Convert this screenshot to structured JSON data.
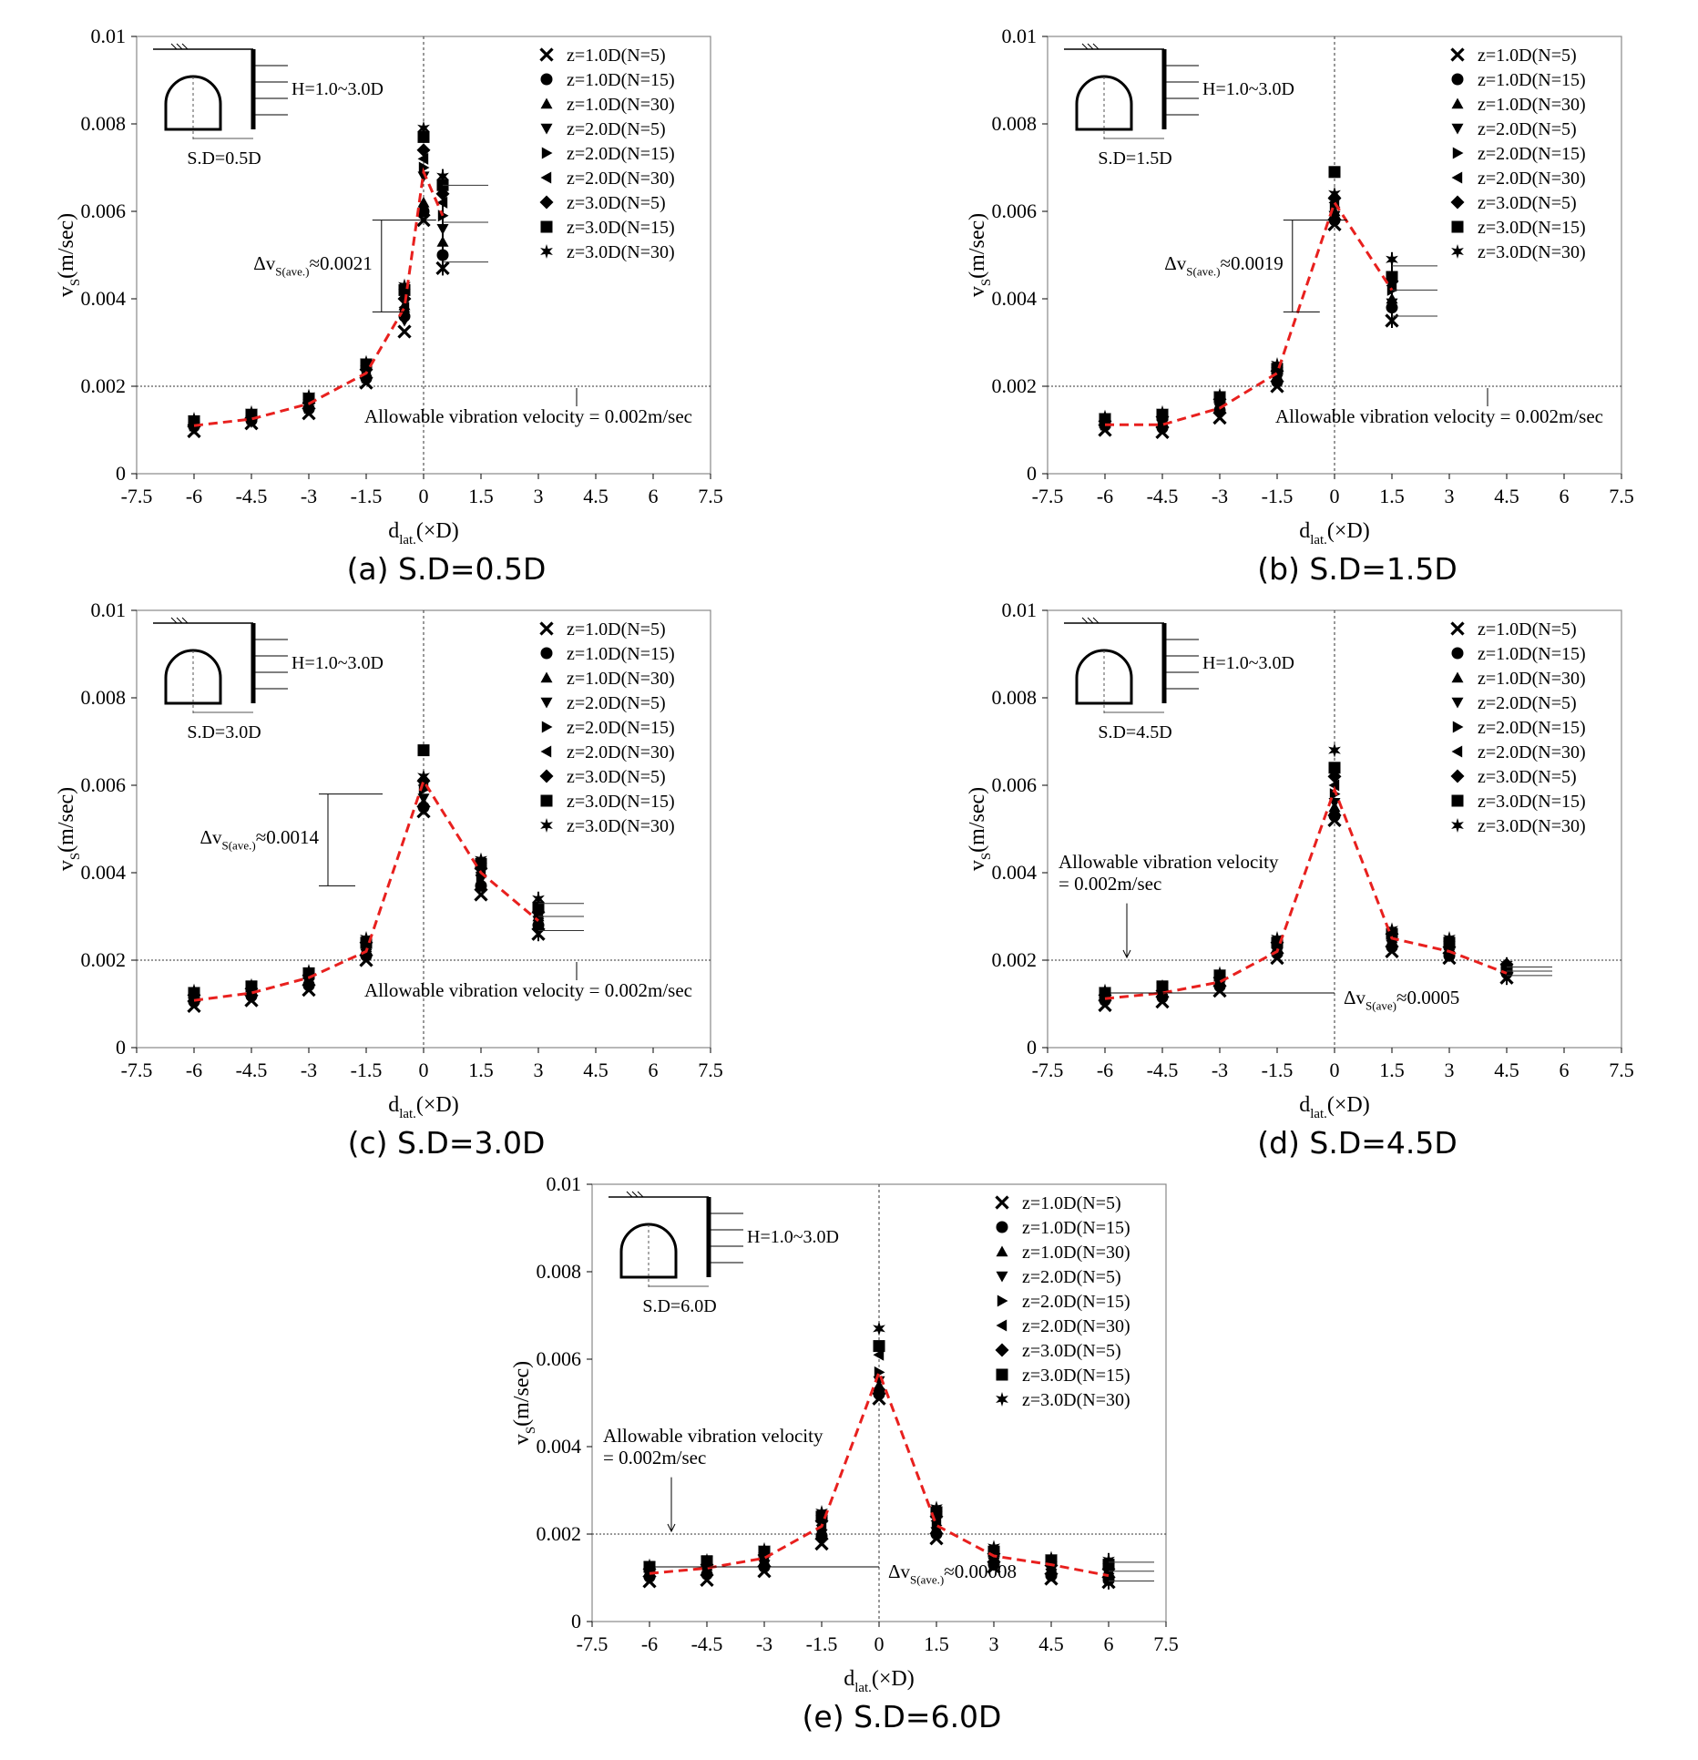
{
  "legend_markers": {
    "z=1.0D(N=5)": "x",
    "z=1.0D(N=15)": "circle",
    "z=1.0D(N=30)": "triangle-up",
    "z=2.0D(N=5)": "triangle-down",
    "z=2.0D(N=15)": "triangle-right",
    "z=2.0D(N=30)": "triangle-left",
    "z=3.0D(N=5)": "diamond",
    "z=3.0D(N=15)": "square",
    "z=3.0D(N=30)": "star"
  },
  "colors": {
    "mean_line": "#e8201e",
    "markers": "#000000",
    "reference_line": "#333333"
  },
  "chart_data": [
    {
      "panel": "a",
      "caption": "(a) S.D=0.5D",
      "type": "scatter",
      "xlabel": "d_lat.(×D)",
      "ylabel": "v_S(m/sec)",
      "xlim": [
        -7.5,
        7.5
      ],
      "ylim": [
        0,
        0.01
      ],
      "xticks": [
        "-7.5",
        "-6",
        "-4.5",
        "-3",
        "-1.5",
        "0",
        "1.5",
        "3",
        "4.5",
        "6",
        "7.5"
      ],
      "yticks": [
        "0",
        "0.002",
        "0.004",
        "0.006",
        "0.008",
        "0.01"
      ],
      "x": [
        -6,
        -4.5,
        -3,
        -1.5,
        -0.5,
        0,
        0.5
      ],
      "series": [
        {
          "name": "z=1.0D(N=5)",
          "values": [
            0.00097,
            0.00115,
            0.00138,
            0.00208,
            0.00325,
            0.0058,
            0.0047
          ]
        },
        {
          "name": "z=1.0D(N=15)",
          "values": [
            0.00108,
            0.00122,
            0.00148,
            0.00218,
            0.0036,
            0.006,
            0.005
          ]
        },
        {
          "name": "z=1.0D(N=30)",
          "values": [
            0.00118,
            0.0013,
            0.00158,
            0.00232,
            0.00385,
            0.0062,
            0.0053
          ]
        },
        {
          "name": "z=2.0D(N=5)",
          "values": [
            0.00103,
            0.00118,
            0.00145,
            0.00215,
            0.0035,
            0.0068,
            0.0056
          ]
        },
        {
          "name": "z=2.0D(N=15)",
          "values": [
            0.0011,
            0.00125,
            0.0015,
            0.0022,
            0.0037,
            0.007,
            0.0059
          ]
        },
        {
          "name": "z=2.0D(N=30)",
          "values": [
            0.00115,
            0.00128,
            0.00155,
            0.00225,
            0.0038,
            0.0072,
            0.0062
          ]
        },
        {
          "name": "z=3.0D(N=5)",
          "values": [
            0.00112,
            0.00128,
            0.00162,
            0.00238,
            0.004,
            0.0074,
            0.0064
          ]
        },
        {
          "name": "z=3.0D(N=15)",
          "values": [
            0.0012,
            0.00135,
            0.00172,
            0.0025,
            0.0042,
            0.0077,
            0.0066
          ]
        },
        {
          "name": "z=3.0D(N=30)",
          "values": [
            0.00125,
            0.0014,
            0.00178,
            0.00255,
            0.0043,
            0.0079,
            0.0068
          ]
        }
      ],
      "mean_curve": {
        "x": [
          -6,
          -4.5,
          -3,
          -1.5,
          -0.5,
          0,
          0.5
        ],
        "y": [
          0.0011,
          0.00125,
          0.0016,
          0.0023,
          0.0038,
          0.0069,
          0.0059
        ]
      },
      "allowable_line_y": 0.002,
      "allowable_label": "Allowable vibration velocity = 0.002m/sec",
      "delta_label": "Δv_S(ave.)≈0.0021",
      "inset": {
        "h_label": "H=1.0~3.0D",
        "sd_label": "S.D=0.5D"
      }
    },
    {
      "panel": "b",
      "caption": "(b) S.D=1.5D",
      "type": "scatter",
      "xlabel": "d_lat.(×D)",
      "ylabel": "v_S(m/sec)",
      "xlim": [
        -7.5,
        7.5
      ],
      "ylim": [
        0,
        0.01
      ],
      "xticks": [
        "-7.5",
        "-6",
        "-4.5",
        "-3",
        "-1.5",
        "0",
        "1.5",
        "3",
        "4.5",
        "6",
        "7.5"
      ],
      "yticks": [
        "0",
        "0.002",
        "0.004",
        "0.006",
        "0.008",
        "0.01"
      ],
      "x": [
        -6,
        -4.5,
        -3,
        -1.5,
        0,
        1.5
      ],
      "series": [
        {
          "name": "z=1.0D(N=5)",
          "values": [
            0.001,
            0.00095,
            0.00128,
            0.002,
            0.0057,
            0.0035
          ]
        },
        {
          "name": "z=1.0D(N=15)",
          "values": [
            0.0011,
            0.00105,
            0.00145,
            0.0021,
            0.0058,
            0.0038
          ]
        },
        {
          "name": "z=1.0D(N=30)",
          "values": [
            0.00115,
            0.0012,
            0.00155,
            0.0022,
            0.006,
            0.004
          ]
        },
        {
          "name": "z=2.0D(N=5)",
          "values": [
            0.00108,
            0.00112,
            0.0015,
            0.00215,
            0.0059,
            0.0039
          ]
        },
        {
          "name": "z=2.0D(N=15)",
          "values": [
            0.00112,
            0.00118,
            0.0016,
            0.00225,
            0.0061,
            0.0042
          ]
        },
        {
          "name": "z=2.0D(N=30)",
          "values": [
            0.00118,
            0.00125,
            0.00165,
            0.0023,
            0.0062,
            0.0043
          ]
        },
        {
          "name": "z=3.0D(N=5)",
          "values": [
            0.0012,
            0.0013,
            0.0017,
            0.00235,
            0.0063,
            0.0044
          ]
        },
        {
          "name": "z=3.0D(N=15)",
          "values": [
            0.00125,
            0.00135,
            0.00175,
            0.0024,
            0.0069,
            0.0045
          ]
        },
        {
          "name": "z=3.0D(N=30)",
          "values": [
            0.0013,
            0.0014,
            0.0018,
            0.0025,
            0.0064,
            0.0049
          ]
        }
      ],
      "mean_curve": {
        "x": [
          -6,
          -4.5,
          -3,
          -1.5,
          0,
          1.5
        ],
        "y": [
          0.00112,
          0.00112,
          0.0015,
          0.0023,
          0.0062,
          0.0042
        ]
      },
      "allowable_line_y": 0.002,
      "allowable_label": "Allowable vibration velocity = 0.002m/sec",
      "delta_label": "Δv_S(ave.)≈0.0019",
      "inset": {
        "h_label": "H=1.0~3.0D",
        "sd_label": "S.D=1.5D"
      }
    },
    {
      "panel": "c",
      "caption": "(c) S.D=3.0D",
      "type": "scatter",
      "xlabel": "d_lat.(×D)",
      "ylabel": "v_S(m/sec)",
      "xlim": [
        -7.5,
        7.5
      ],
      "ylim": [
        0,
        0.01
      ],
      "xticks": [
        "-7.5",
        "-6",
        "-4.5",
        "-3",
        "-1.5",
        "0",
        "1.5",
        "3",
        "4.5",
        "6",
        "7.5"
      ],
      "yticks": [
        "0",
        "0.002",
        "0.004",
        "0.006",
        "0.008",
        "0.01"
      ],
      "x": [
        -6,
        -4.5,
        -3,
        -1.5,
        0,
        1.5,
        3
      ],
      "series": [
        {
          "name": "z=1.0D(N=5)",
          "values": [
            0.00095,
            0.00108,
            0.00132,
            0.002,
            0.0054,
            0.0035,
            0.0026
          ]
        },
        {
          "name": "z=1.0D(N=15)",
          "values": [
            0.00105,
            0.00118,
            0.00142,
            0.0021,
            0.0055,
            0.0037,
            0.0028
          ]
        },
        {
          "name": "z=1.0D(N=30)",
          "values": [
            0.00115,
            0.00128,
            0.00158,
            0.00225,
            0.0056,
            0.0038,
            0.003
          ]
        },
        {
          "name": "z=2.0D(N=5)",
          "values": [
            0.0011,
            0.00122,
            0.0015,
            0.00215,
            0.0057,
            0.00385,
            0.0029
          ]
        },
        {
          "name": "z=2.0D(N=15)",
          "values": [
            0.00112,
            0.00125,
            0.00155,
            0.0022,
            0.0059,
            0.0039,
            0.00295
          ]
        },
        {
          "name": "z=2.0D(N=30)",
          "values": [
            0.00118,
            0.0013,
            0.0016,
            0.0023,
            0.006,
            0.004,
            0.003
          ]
        },
        {
          "name": "z=3.0D(N=5)",
          "values": [
            0.0012,
            0.00135,
            0.00165,
            0.0024,
            0.0061,
            0.0041,
            0.0031
          ]
        },
        {
          "name": "z=3.0D(N=15)",
          "values": [
            0.00125,
            0.0014,
            0.0017,
            0.0024,
            0.0068,
            0.0042,
            0.0032
          ]
        },
        {
          "name": "z=3.0D(N=30)",
          "values": [
            0.0013,
            0.00142,
            0.00175,
            0.0025,
            0.0062,
            0.0043,
            0.0034
          ]
        }
      ],
      "mean_curve": {
        "x": [
          -6,
          -4.5,
          -3,
          -1.5,
          0,
          1.5,
          3
        ],
        "y": [
          0.00108,
          0.00125,
          0.0016,
          0.0022,
          0.0061,
          0.004,
          0.0029
        ]
      },
      "allowable_line_y": 0.002,
      "allowable_label": "Allowable vibration velocity = 0.002m/sec",
      "delta_label": "Δv_S(ave.)≈0.0014",
      "inset": {
        "h_label": "H=1.0~3.0D",
        "sd_label": "S.D=3.0D"
      }
    },
    {
      "panel": "d",
      "caption": "(d) S.D=4.5D",
      "type": "scatter",
      "xlabel": "d_lat.(×D)",
      "ylabel": "v_S(m/sec)",
      "xlim": [
        -7.5,
        7.5
      ],
      "ylim": [
        0,
        0.01
      ],
      "xticks": [
        "-7.5",
        "-6",
        "-4.5",
        "-3",
        "-1.5",
        "0",
        "1.5",
        "3",
        "4.5",
        "6",
        "7.5"
      ],
      "yticks": [
        "0",
        "0.002",
        "0.004",
        "0.006",
        "0.008",
        "0.01"
      ],
      "x": [
        -6,
        -4.5,
        -3,
        -1.5,
        0,
        1.5,
        3,
        4.5
      ],
      "series": [
        {
          "name": "z=1.0D(N=5)",
          "values": [
            0.00097,
            0.00105,
            0.0013,
            0.00205,
            0.0052,
            0.0022,
            0.00205,
            0.0016
          ]
        },
        {
          "name": "z=1.0D(N=15)",
          "values": [
            0.00108,
            0.00115,
            0.0014,
            0.00215,
            0.0053,
            0.0023,
            0.0021,
            0.0017
          ]
        },
        {
          "name": "z=1.0D(N=30)",
          "values": [
            0.00115,
            0.00125,
            0.0015,
            0.0022,
            0.0055,
            0.0024,
            0.0022,
            0.0018
          ]
        },
        {
          "name": "z=2.0D(N=5)",
          "values": [
            0.0011,
            0.0012,
            0.00145,
            0.00218,
            0.0056,
            0.00235,
            0.00215,
            0.00175
          ]
        },
        {
          "name": "z=2.0D(N=15)",
          "values": [
            0.00112,
            0.00122,
            0.0015,
            0.00225,
            0.0058,
            0.0024,
            0.0022,
            0.0018
          ]
        },
        {
          "name": "z=2.0D(N=30)",
          "values": [
            0.00118,
            0.00128,
            0.00155,
            0.0023,
            0.006,
            0.0025,
            0.00225,
            0.00185
          ]
        },
        {
          "name": "z=3.0D(N=5)",
          "values": [
            0.0012,
            0.0013,
            0.0016,
            0.0024,
            0.0062,
            0.0026,
            0.0023,
            0.0019
          ]
        },
        {
          "name": "z=3.0D(N=15)",
          "values": [
            0.00125,
            0.0014,
            0.00165,
            0.0024,
            0.0064,
            0.0026,
            0.0024,
            0.0018
          ]
        },
        {
          "name": "z=3.0D(N=30)",
          "values": [
            0.0013,
            0.0014,
            0.0017,
            0.0025,
            0.0068,
            0.0027,
            0.0025,
            0.0019
          ]
        }
      ],
      "mean_curve": {
        "x": [
          -6,
          -4.5,
          -3,
          -1.5,
          0,
          1.5,
          3,
          4.5
        ],
        "y": [
          0.00112,
          0.00125,
          0.0015,
          0.0022,
          0.0059,
          0.0025,
          0.0022,
          0.0017
        ]
      },
      "allowable_line_y": 0.002,
      "allowable_label_1": "Allowable vibration velocity",
      "allowable_label_2": "= 0.002m/sec",
      "delta_label": "Δv_S(ave)≈0.0005",
      "inset": {
        "h_label": "H=1.0~3.0D",
        "sd_label": "S.D=4.5D"
      }
    },
    {
      "panel": "e",
      "caption": "(e) S.D=6.0D",
      "type": "scatter",
      "xlabel": "d_lat.(×D)",
      "ylabel": "v_S(m/sec)",
      "xlim": [
        -7.5,
        7.5
      ],
      "ylim": [
        0,
        0.01
      ],
      "xticks": [
        "-7.5",
        "-6",
        "-4.5",
        "-3",
        "-1.5",
        "0",
        "1.5",
        "3",
        "4.5",
        "6",
        "7.5"
      ],
      "yticks": [
        "0",
        "0.002",
        "0.004",
        "0.006",
        "0.008",
        "0.01"
      ],
      "x": [
        -6,
        -4.5,
        -3,
        -1.5,
        0,
        1.5,
        3,
        4.5,
        6
      ],
      "series": [
        {
          "name": "z=1.0D(N=5)",
          "values": [
            0.00092,
            0.00095,
            0.00115,
            0.00178,
            0.0051,
            0.0019,
            0.00125,
            0.00098,
            0.0009
          ]
        },
        {
          "name": "z=1.0D(N=15)",
          "values": [
            0.00102,
            0.00108,
            0.00125,
            0.00195,
            0.0052,
            0.002,
            0.0013,
            0.00105,
            0.00095
          ]
        },
        {
          "name": "z=1.0D(N=30)",
          "values": [
            0.0011,
            0.00118,
            0.00138,
            0.0021,
            0.0054,
            0.0021,
            0.0014,
            0.00112,
            0.001
          ]
        },
        {
          "name": "z=2.0D(N=5)",
          "values": [
            0.00105,
            0.00112,
            0.0013,
            0.002,
            0.0055,
            0.00205,
            0.00135,
            0.0011,
            0.001
          ]
        },
        {
          "name": "z=2.0D(N=15)",
          "values": [
            0.0011,
            0.00118,
            0.00138,
            0.0021,
            0.0057,
            0.0022,
            0.0014,
            0.00115,
            0.00105
          ]
        },
        {
          "name": "z=2.0D(N=30)",
          "values": [
            0.00115,
            0.00125,
            0.00145,
            0.0022,
            0.0061,
            0.0023,
            0.00148,
            0.0012,
            0.0011
          ]
        },
        {
          "name": "z=3.0D(N=5)",
          "values": [
            0.0012,
            0.0013,
            0.00152,
            0.0023,
            0.0053,
            0.0024,
            0.00155,
            0.00128,
            0.0012
          ]
        },
        {
          "name": "z=3.0D(N=15)",
          "values": [
            0.00125,
            0.00138,
            0.0016,
            0.0024,
            0.0063,
            0.0025,
            0.0016,
            0.0014,
            0.0013
          ]
        },
        {
          "name": "z=3.0D(N=30)",
          "values": [
            0.00128,
            0.0014,
            0.00165,
            0.0025,
            0.0067,
            0.0026,
            0.0017,
            0.00145,
            0.0014
          ]
        }
      ],
      "mean_curve": {
        "x": [
          -6,
          -4.5,
          -3,
          -1.5,
          0,
          1.5,
          3,
          4.5,
          6
        ],
        "y": [
          0.0011,
          0.00122,
          0.00145,
          0.00218,
          0.0057,
          0.0022,
          0.0015,
          0.0013,
          0.00105
        ]
      },
      "allowable_line_y": 0.002,
      "allowable_label_1": "Allowable vibration velocity",
      "allowable_label_2": "= 0.002m/sec",
      "delta_label": "Δv_S(ave.)≈0.00008",
      "inset": {
        "h_label": "H=1.0~3.0D",
        "sd_label": "S.D=6.0D"
      }
    }
  ]
}
